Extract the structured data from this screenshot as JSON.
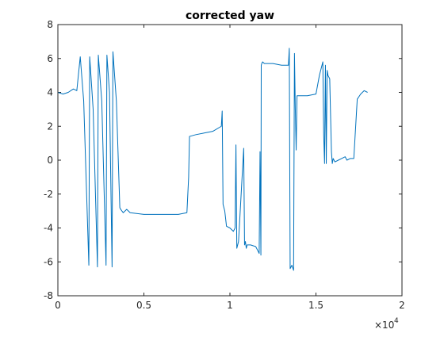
{
  "chart_data": {
    "type": "line",
    "title": "corrected yaw",
    "xlabel": "",
    "ylabel": "",
    "xlim": [
      0,
      20000
    ],
    "ylim": [
      -8,
      8
    ],
    "x_tick_labels": [
      "0",
      "0.5",
      "1",
      "1.5",
      "2"
    ],
    "x_tick_values": [
      0,
      5000,
      10000,
      15000,
      20000
    ],
    "x_exponent_base": "×10",
    "x_exponent_power": "4",
    "y_tick_labels": [
      "-8",
      "-6",
      "-4",
      "-2",
      "0",
      "2",
      "4",
      "6",
      "8"
    ],
    "y_tick_values": [
      -8,
      -6,
      -4,
      -2,
      0,
      2,
      4,
      6,
      8
    ],
    "grid": false,
    "legend": "none",
    "series_color": "#0072BD",
    "series": [
      {
        "x": [
          0,
          300,
          600,
          900,
          1100,
          1300,
          1500,
          1800,
          1850,
          2050,
          2300,
          2350,
          2550,
          2800,
          2850,
          3000,
          3150,
          3200,
          3400,
          3600,
          3650,
          3800,
          4000,
          4200,
          5000,
          6000,
          7000,
          7500,
          7600,
          7650,
          8000,
          8500,
          9000,
          9500,
          9550,
          9600,
          9700,
          9800,
          10000,
          10200,
          10300,
          10350,
          10400,
          10500,
          10800,
          10850,
          10900,
          10950,
          11000,
          11200,
          11500,
          11700,
          11750,
          11800,
          11820,
          11850,
          11900,
          12000,
          12500,
          13000,
          13400,
          13450,
          13500,
          13550,
          13600,
          13700,
          13750,
          13800,
          13850,
          13900,
          13920,
          13950,
          14000,
          14500,
          15000,
          15200,
          15400,
          15450,
          15500,
          15550,
          15600,
          15650,
          15700,
          15800,
          15900,
          15950,
          16000,
          16100,
          16300,
          16500,
          16700,
          16800,
          17000,
          17200,
          17400,
          17600,
          17800,
          18000
        ],
        "y": [
          4.0,
          3.9,
          4.0,
          4.2,
          4.1,
          6.1,
          3.5,
          -6.2,
          6.1,
          3.0,
          -6.3,
          6.2,
          3.5,
          -6.2,
          6.2,
          4.0,
          -6.3,
          6.4,
          3.5,
          -2.8,
          -2.9,
          -3.1,
          -2.9,
          -3.1,
          -3.2,
          -3.2,
          -3.2,
          -3.1,
          -1.0,
          1.4,
          1.5,
          1.6,
          1.7,
          2.0,
          2.9,
          -2.6,
          -3.0,
          -3.9,
          -4.0,
          -4.2,
          -4.0,
          0.9,
          -5.2,
          -4.8,
          0.7,
          -5.0,
          -4.8,
          -5.2,
          -5.0,
          -5.0,
          -5.1,
          -5.5,
          0.5,
          -5.6,
          5.6,
          5.7,
          5.8,
          5.7,
          5.7,
          5.6,
          5.6,
          6.6,
          -6.4,
          -6.3,
          -6.2,
          -6.5,
          6.3,
          3.0,
          0.6,
          3.8,
          3.8,
          3.8,
          3.8,
          3.8,
          3.9,
          5.0,
          5.8,
          1.5,
          -0.2,
          5.6,
          -0.2,
          5.3,
          5.0,
          4.8,
          0.5,
          -0.2,
          0.1,
          -0.1,
          0.0,
          0.1,
          0.2,
          0.0,
          0.1,
          0.1,
          3.6,
          3.9,
          4.1,
          4.0
        ]
      }
    ]
  }
}
